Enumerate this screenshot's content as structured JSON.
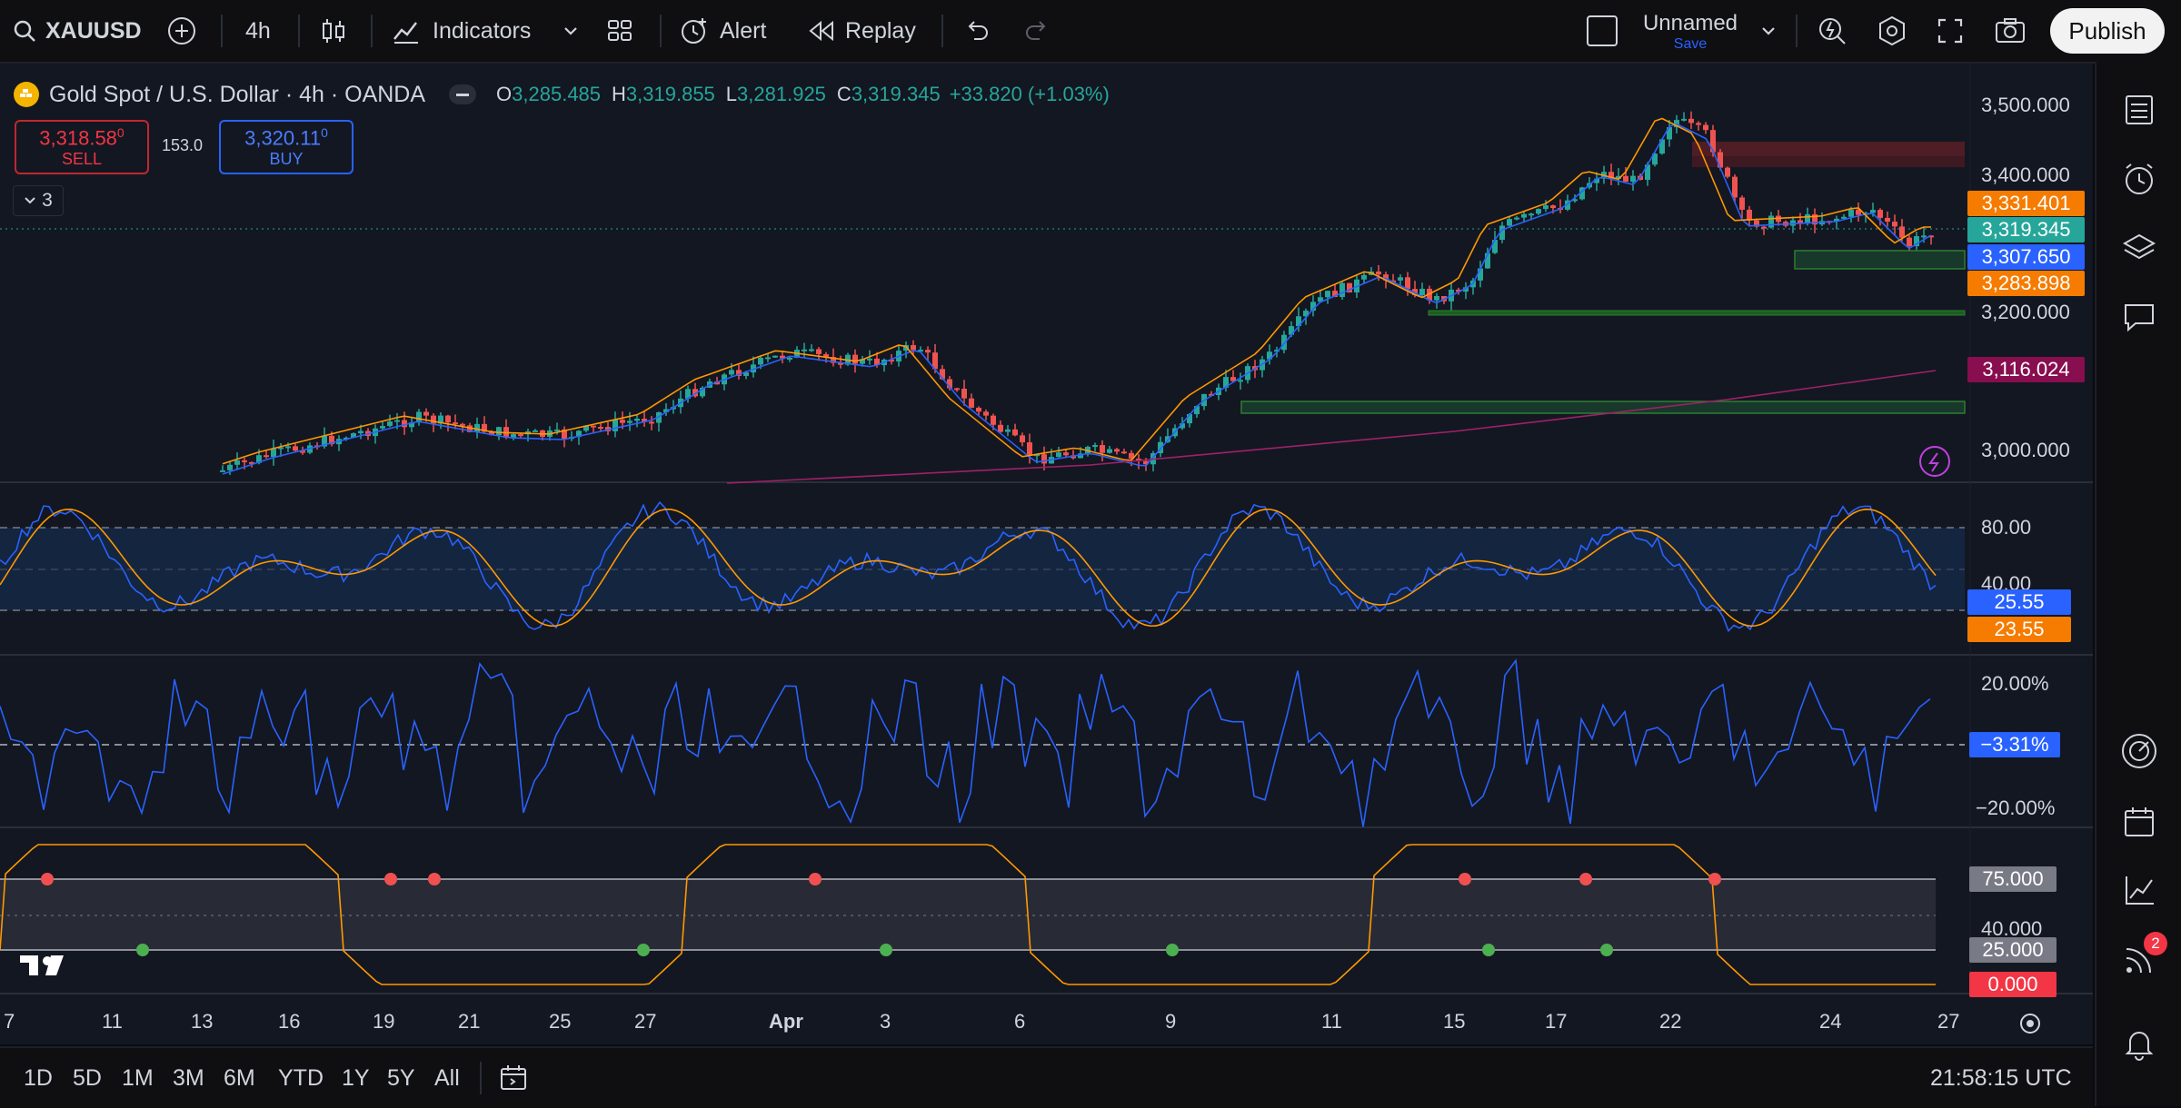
{
  "toolbar": {
    "symbol": "XAUUSD",
    "interval": "4h",
    "indicators": "Indicators",
    "alert": "Alert",
    "replay": "Replay",
    "layout_name": "Unnamed",
    "save": "Save",
    "publish": "Publish"
  },
  "legend": {
    "title": "Gold Spot / U.S. Dollar · 4h · OANDA",
    "o_label": "O",
    "o": "3,285.485",
    "h_label": "H",
    "h": "3,319.855",
    "l_label": "L",
    "l": "3,281.925",
    "c_label": "C",
    "c": "3,319.345",
    "change": "+33.820 (+1.03%)"
  },
  "trade": {
    "sell_price": "3,318.58",
    "sell_sup": "0",
    "sell_label": "SELL",
    "spread": "153.0",
    "buy_price": "3,320.11",
    "buy_sup": "0",
    "buy_label": "BUY",
    "collapsed_count": "3"
  },
  "price_axis": [
    "3,500.000",
    "3,400.000",
    "3,200.000",
    "3,000.000"
  ],
  "price_tags": [
    {
      "label": "3,331.401",
      "color": "#f57c00"
    },
    {
      "label": "3,319.345",
      "color": "#26a69a"
    },
    {
      "label": "3,307.650",
      "color": "#2962ff"
    },
    {
      "label": "3,283.898",
      "color": "#f57c00"
    },
    {
      "label": "3,116.024",
      "color": "#880e4f"
    }
  ],
  "stoch": {
    "axis": [
      "80.00",
      "40.00"
    ],
    "k_tag": "25.55",
    "d_tag": "23.55",
    "k_color": "#2962ff",
    "d_color": "#ff9800"
  },
  "roc": {
    "axis": [
      "20.00%",
      "−20.00%"
    ],
    "tag": "−3.31%"
  },
  "osc": {
    "axis": [
      "40.000"
    ],
    "tag_75": "75.000",
    "tag_25": "25.000",
    "tag_0": "0.000"
  },
  "dates": [
    "7",
    "11",
    "13",
    "16",
    "19",
    "21",
    "25",
    "27",
    "Apr",
    "3",
    "6",
    "9",
    "11",
    "15",
    "17",
    "22",
    "24",
    "27"
  ],
  "ranges": [
    "1D",
    "5D",
    "1M",
    "3M",
    "6M",
    "YTD",
    "1Y",
    "5Y",
    "All"
  ],
  "clock": "21:58:15 UTC",
  "notifications_badge": "2",
  "colors": {
    "up": "#26a69a",
    "down": "#ef5350",
    "bg": "#131722"
  }
}
